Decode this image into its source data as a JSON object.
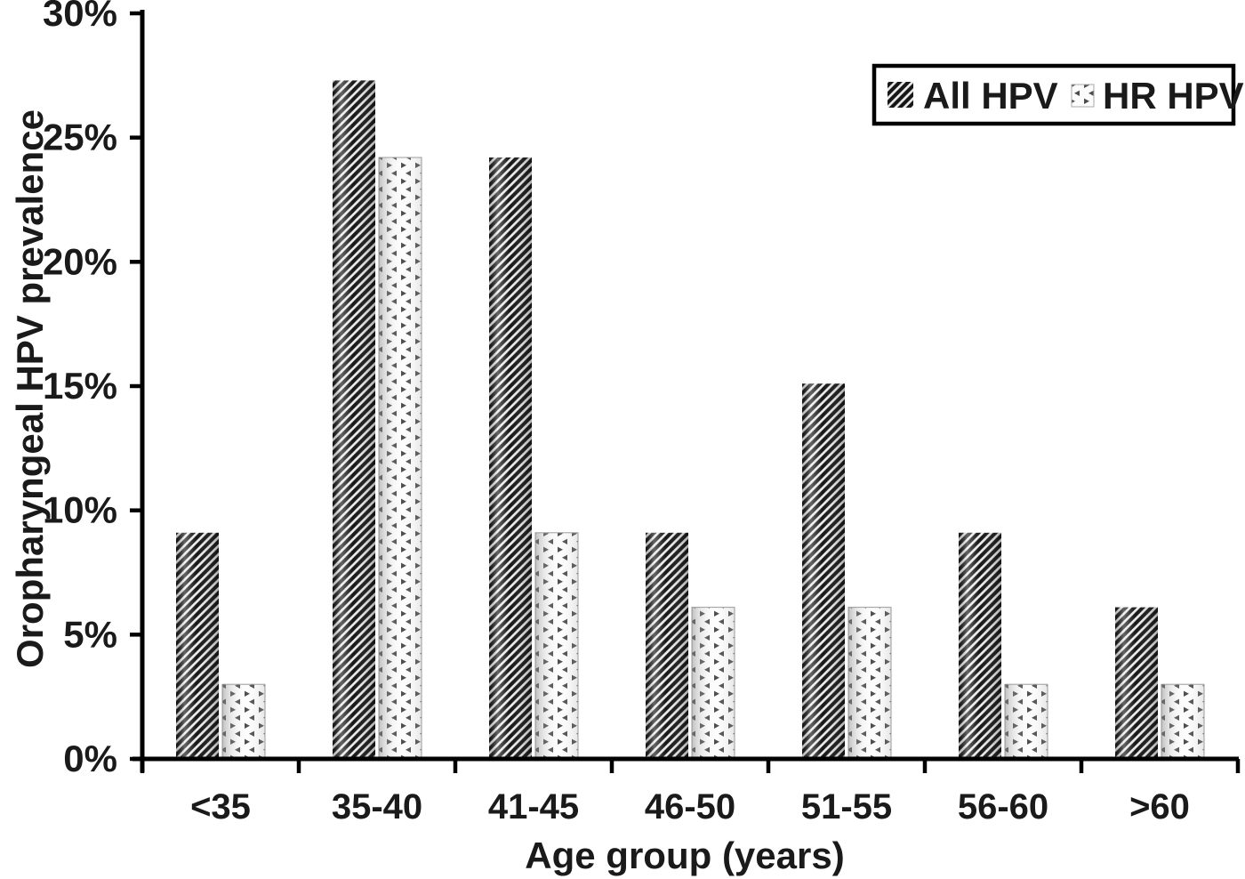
{
  "figure": {
    "background": "#ffffff",
    "text_color": "#1a1a1a",
    "axis_color": "#000000"
  },
  "chart_data": {
    "type": "bar",
    "title": "",
    "xlabel": "Age group (years)",
    "ylabel": "Oropharyngeal HPV prevalence",
    "categories": [
      "<35",
      "35-40",
      "41-45",
      "46-50",
      "51-55",
      "56-60",
      ">60"
    ],
    "series": [
      {
        "name": "All HPV",
        "pattern": "diagonal-hatch",
        "values": [
          9.1,
          27.3,
          24.2,
          9.1,
          15.1,
          9.1,
          6.1
        ]
      },
      {
        "name": "HR HPV",
        "pattern": "triangle-dots",
        "values": [
          3.0,
          24.2,
          9.1,
          6.1,
          6.1,
          3.0,
          3.0
        ]
      }
    ],
    "ylim": [
      0,
      30
    ],
    "ytick_step": 5,
    "ytick_labels": [
      "0%",
      "5%",
      "10%",
      "15%",
      "20%",
      "25%",
      "30%"
    ],
    "grid": false,
    "legend_position": "top-right"
  }
}
